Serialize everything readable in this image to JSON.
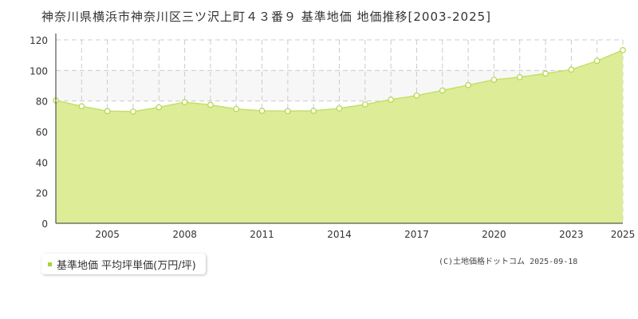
{
  "title": "神奈川県横浜市神奈川区三ツ沢上町４３番９ 基準地価 地価推移[2003-2025]",
  "legend": {
    "label": "基準地価 平均坪単価(万円/坪)"
  },
  "credit": "(C)土地価格ドットコム 2025-09-18",
  "colors": {
    "fill": "#dcec97",
    "line": "#c5e06b",
    "point_fill": "#ffffff",
    "point_stroke": "#b5d64a",
    "band": "#f7f7f7",
    "legend_swatch": "#a9d13a"
  },
  "chart_data": {
    "type": "area",
    "title": "神奈川県横浜市神奈川区三ツ沢上町４３番９ 基準地価 地価推移[2003-2025]",
    "x": [
      2003,
      2004,
      2005,
      2006,
      2007,
      2008,
      2009,
      2010,
      2011,
      2012,
      2013,
      2014,
      2015,
      2016,
      2017,
      2018,
      2019,
      2020,
      2021,
      2022,
      2023,
      2024,
      2025
    ],
    "series": [
      {
        "name": "基準地価 平均坪単価(万円/坪)",
        "values": [
          80.4,
          76.6,
          73.4,
          73.1,
          75.9,
          79.3,
          77.5,
          74.8,
          73.6,
          73.4,
          73.6,
          75.2,
          77.8,
          80.9,
          83.6,
          86.9,
          90.4,
          93.9,
          95.6,
          98.0,
          100.6,
          106.3,
          113.3
        ]
      }
    ],
    "xticks": [
      2005,
      2008,
      2011,
      2014,
      2017,
      2020,
      2023,
      2025
    ],
    "yticks": [
      0,
      20,
      40,
      60,
      80,
      100,
      120
    ],
    "xlim": [
      2003,
      2025
    ],
    "ylim": [
      0,
      120
    ],
    "grid": true
  }
}
